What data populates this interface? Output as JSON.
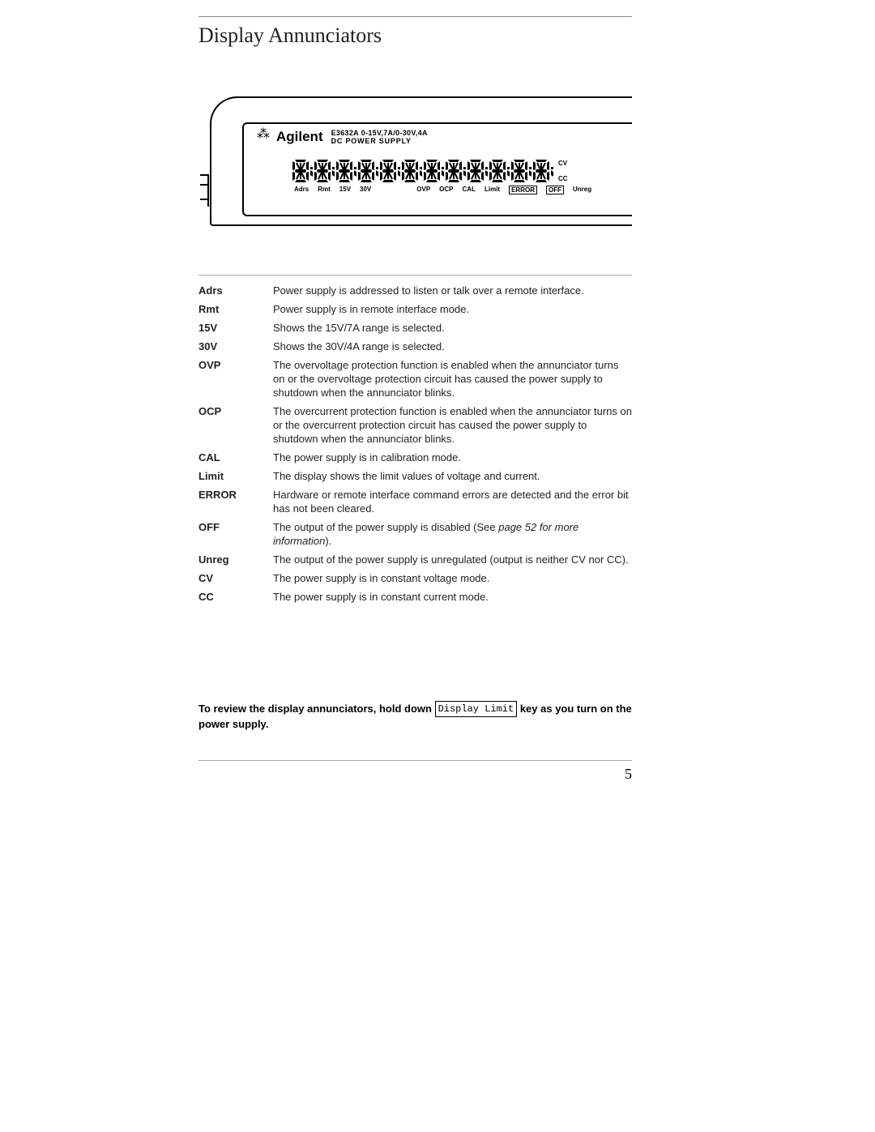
{
  "title": "Display Annunciators",
  "device": {
    "brand": "Agilent",
    "model": "E3632A",
    "spec": "0-15V,7A/0-30V,4A",
    "subtitle": "DC POWER SUPPLY",
    "side_labels": [
      "CV",
      "CC"
    ],
    "digit_count": 12,
    "annunciators_plain": [
      "Adrs",
      "Rmt",
      "15V",
      "30V"
    ],
    "annunciators_right": [
      "OVP",
      "OCP",
      "CAL",
      "Limit"
    ],
    "annunciators_boxed": [
      "ERROR",
      "OFF"
    ],
    "annunciators_tail": [
      "Unreg"
    ]
  },
  "definitions": [
    {
      "term": "Adrs",
      "desc": "Power supply is addressed to listen or talk over a remote interface."
    },
    {
      "term": "Rmt",
      "desc": "Power supply is in remote interface mode."
    },
    {
      "term": "15V",
      "desc": "Shows the 15V/7A range is selected."
    },
    {
      "term": "30V",
      "desc": "Shows the 30V/4A range is selected."
    },
    {
      "term": "OVP",
      "desc": "The overvoltage protection function is enabled when the annunciator turns on or  the overvoltage protection circuit has caused the power supply to shutdown when the annunciator blinks."
    },
    {
      "term": "OCP",
      "desc": "The overcurrent protection function is enabled when the annunciator turns on or  the overcurrent protection circuit has caused the power supply to shutdown when the annunciator blinks."
    },
    {
      "term": "CAL",
      "desc": "The power supply is in calibration mode."
    },
    {
      "term": "Limit",
      "desc": "The display shows the limit values of voltage and current."
    },
    {
      "term": "ERROR",
      "desc": "Hardware or remote interface command errors are detected and the error bit has not been cleared."
    },
    {
      "term": "OFF",
      "desc": "The output of the power supply is disabled (See ",
      "ital": "page 52 for more information",
      "desc_tail": ")."
    },
    {
      "term": "Unreg",
      "desc": "The output of the power supply is unregulated (output is neither CV nor CC)."
    },
    {
      "term": "CV",
      "desc": "The power supply is in constant voltage mode."
    },
    {
      "term": "CC",
      "desc": "The power supply is in constant current mode."
    }
  ],
  "note": {
    "pre": "To review the display annunciators, hold down ",
    "key": "Display Limit",
    "post": " key as you turn on the power supply."
  },
  "page_number": "5",
  "colors": {
    "text": "#222222",
    "rule": "#aaaaaa",
    "black": "#000000",
    "background": "#ffffff"
  }
}
